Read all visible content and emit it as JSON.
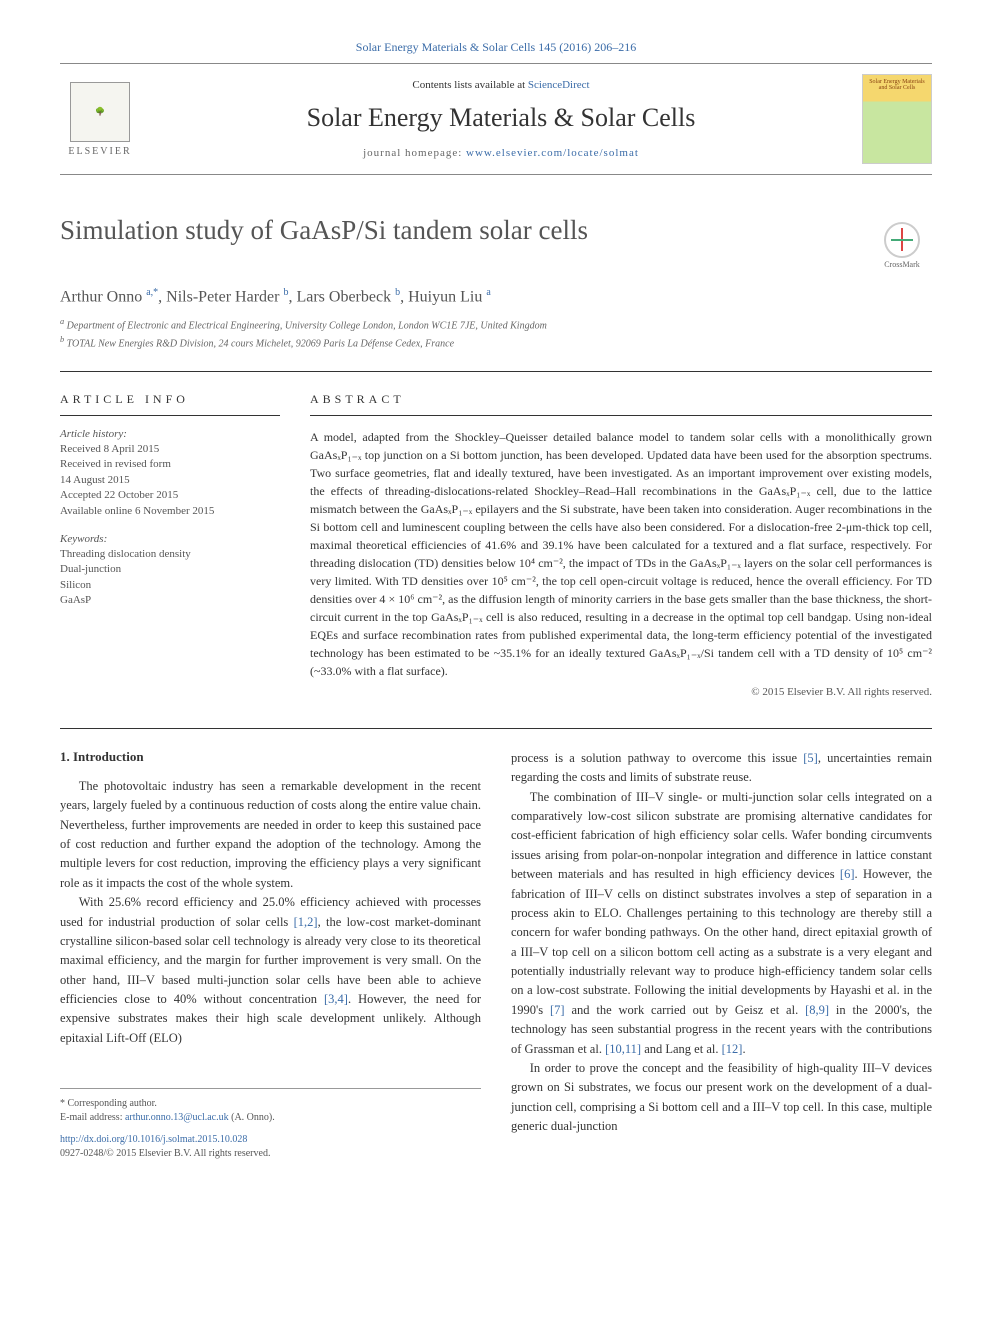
{
  "header": {
    "top_link": "Solar Energy Materials & Solar Cells 145 (2016) 206–216",
    "contents_text": "Contents lists available at ",
    "contents_link": "ScienceDirect",
    "journal_name": "Solar Energy Materials & Solar Cells",
    "homepage_label": "journal homepage: ",
    "homepage_url": "www.elsevier.com/locate/solmat",
    "elsevier_label": "ELSEVIER",
    "cover_text": "Solar Energy Materials and Solar Cells",
    "crossmark_label": "CrossMark"
  },
  "article": {
    "title": "Simulation study of GaAsP/Si tandem solar cells",
    "authors_html": "Arthur Onno <sup>a,*</sup>, Nils-Peter Harder <sup>b</sup>, Lars Oberbeck <sup>b</sup>, Huiyun Liu <sup>a</sup>",
    "affiliations": [
      "a Department of Electronic and Electrical Engineering, University College London, London WC1E 7JE, United Kingdom",
      "b TOTAL New Energies R&D Division, 24 cours Michelet, 92069 Paris La Défense Cedex, France"
    ]
  },
  "info": {
    "heading": "ARTICLE INFO",
    "history_label": "Article history:",
    "history": [
      "Received 8 April 2015",
      "Received in revised form",
      "14 August 2015",
      "Accepted 22 October 2015",
      "Available online 6 November 2015"
    ],
    "keywords_label": "Keywords:",
    "keywords": [
      "Threading dislocation density",
      "Dual-junction",
      "Silicon",
      "GaAsP"
    ]
  },
  "abstract": {
    "heading": "ABSTRACT",
    "text": "A model, adapted from the Shockley–Queisser detailed balance model to tandem solar cells with a monolithically grown GaAsₓP₁₋ₓ top junction on a Si bottom junction, has been developed. Updated data have been used for the absorption spectrums. Two surface geometries, flat and ideally textured, have been investigated. As an important improvement over existing models, the effects of threading-dislocations-related Shockley–Read–Hall recombinations in the GaAsₓP₁₋ₓ cell, due to the lattice mismatch between the GaAsₓP₁₋ₓ epilayers and the Si substrate, have been taken into consideration. Auger recombinations in the Si bottom cell and luminescent coupling between the cells have also been considered. For a dislocation-free 2-μm-thick top cell, maximal theoretical efficiencies of 41.6% and 39.1% have been calculated for a textured and a flat surface, respectively. For threading dislocation (TD) densities below 10⁴ cm⁻², the impact of TDs in the GaAsₓP₁₋ₓ layers on the solar cell performances is very limited. With TD densities over 10⁵ cm⁻², the top cell open-circuit voltage is reduced, hence the overall efficiency. For TD densities over 4 × 10⁶ cm⁻², as the diffusion length of minority carriers in the base gets smaller than the base thickness, the short-circuit current in the top GaAsₓP₁₋ₓ cell is also reduced, resulting in a decrease in the optimal top cell bandgap. Using non-ideal EQEs and surface recombination rates from published experimental data, the long-term efficiency potential of the investigated technology has been estimated to be ~35.1% for an ideally textured GaAsₓP₁₋ₓ/Si tandem cell with a TD density of 10⁵ cm⁻² (~33.0% with a flat surface).",
    "copyright": "© 2015 Elsevier B.V. All rights reserved."
  },
  "body": {
    "intro_heading": "1. Introduction",
    "col1_p1": "The photovoltaic industry has seen a remarkable development in the recent years, largely fueled by a continuous reduction of costs along the entire value chain. Nevertheless, further improvements are needed in order to keep this sustained pace of cost reduction and further expand the adoption of the technology. Among the multiple levers for cost reduction, improving the efficiency plays a very significant role as it impacts the cost of the whole system.",
    "col1_p2_a": "With 25.6% record efficiency and 25.0% efficiency achieved with processes used for industrial production of solar cells ",
    "col1_p2_ref1": "[1,2]",
    "col1_p2_b": ", the low-cost market-dominant crystalline silicon-based solar cell technology is already very close to its theoretical maximal efficiency, and the margin for further improvement is very small. On the other hand, III–V based multi-junction solar cells have been able to achieve efficiencies close to 40% without concentration ",
    "col1_p2_ref2": "[3,4]",
    "col1_p2_c": ". However, the need for expensive substrates makes their high scale development unlikely. Although epitaxial Lift-Off (ELO)",
    "col2_p1_a": "process is a solution pathway to overcome this issue ",
    "col2_p1_ref1": "[5]",
    "col2_p1_b": ", uncertainties remain regarding the costs and limits of substrate reuse.",
    "col2_p2_a": "The combination of III–V single- or multi-junction solar cells integrated on a comparatively low-cost silicon substrate are promising alternative candidates for cost-efficient fabrication of high efficiency solar cells. Wafer bonding circumvents issues arising from polar-on-nonpolar integration and difference in lattice constant between materials and has resulted in high efficiency devices ",
    "col2_p2_ref1": "[6]",
    "col2_p2_b": ". However, the fabrication of III–V cells on distinct substrates involves a step of separation in a process akin to ELO. Challenges pertaining to this technology are thereby still a concern for wafer bonding pathways. On the other hand, direct epitaxial growth of a III–V top cell on a silicon bottom cell acting as a substrate is a very elegant and potentially industrially relevant way to produce high-efficiency tandem solar cells on a low-cost substrate. Following the initial developments by Hayashi et al. in the 1990's ",
    "col2_p2_ref2": "[7]",
    "col2_p2_c": " and the work carried out by Geisz et al. ",
    "col2_p2_ref3": "[8,9]",
    "col2_p2_d": " in the 2000's, the technology has seen substantial progress in the recent years with the contributions of Grassman et al. ",
    "col2_p2_ref4": "[10,11]",
    "col2_p2_e": " and Lang et al. ",
    "col2_p2_ref5": "[12]",
    "col2_p2_f": ".",
    "col2_p3": "In order to prove the concept and the feasibility of high-quality III–V devices grown on Si substrates, we focus our present work on the development of a dual-junction cell, comprising a Si bottom cell and a III–V top cell. In this case, multiple generic dual-junction"
  },
  "footnote": {
    "corr_label": "* Corresponding author.",
    "email_label": "E-mail address: ",
    "email": "arthur.onno.13@ucl.ac.uk",
    "email_suffix": " (A. Onno).",
    "doi": "http://dx.doi.org/10.1016/j.solmat.2015.10.028",
    "issn": "0927-0248/© 2015 Elsevier B.V. All rights reserved."
  },
  "colors": {
    "link": "#3b6ca8",
    "text": "#333333",
    "muted": "#666666"
  }
}
